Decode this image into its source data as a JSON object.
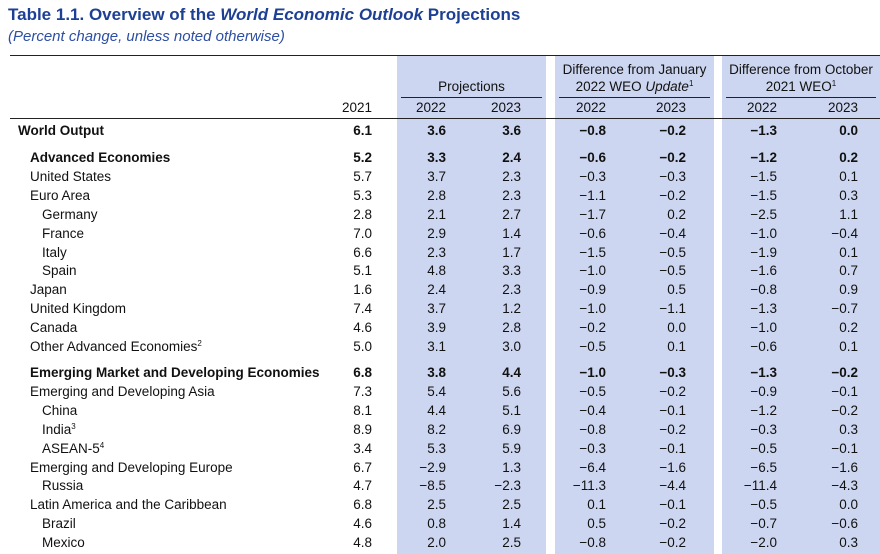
{
  "title": {
    "lead": "Table 1.1. Overview of the",
    "italic": "World Economic Outlook",
    "tail": "Projections"
  },
  "subtitle": "(Percent change, unless noted otherwise)",
  "header": {
    "years": [
      "2021",
      "2022",
      "2023",
      "2022",
      "2023",
      "2022",
      "2023"
    ],
    "projections": "Projections",
    "january": {
      "line1": "Difference from January",
      "line2": "2022 WEO",
      "italic": "Update",
      "note": "1"
    },
    "october": {
      "line1": "Difference from October",
      "line2": "2021 WEO",
      "note": "1"
    }
  },
  "table": {
    "world": {
      "label": "World Output",
      "values": [
        "6.1",
        "3.6",
        "3.6",
        "−0.8",
        "−0.2",
        "−1.3",
        "0.0"
      ]
    },
    "groups": [
      {
        "label": "Advanced Economies",
        "values": [
          "5.2",
          "3.3",
          "2.4",
          "−0.6",
          "−0.2",
          "−1.2",
          "0.2"
        ],
        "rows": [
          {
            "label": "United States",
            "values": [
              "5.7",
              "3.7",
              "2.3",
              "−0.3",
              "−0.3",
              "−1.5",
              "0.1"
            ]
          },
          {
            "label": "Euro Area",
            "values": [
              "5.3",
              "2.8",
              "2.3",
              "−1.1",
              "−0.2",
              "−1.5",
              "0.3"
            ],
            "rows": [
              {
                "label": "Germany",
                "values": [
                  "2.8",
                  "2.1",
                  "2.7",
                  "−1.7",
                  "0.2",
                  "−2.5",
                  "1.1"
                ]
              },
              {
                "label": "France",
                "values": [
                  "7.0",
                  "2.9",
                  "1.4",
                  "−0.6",
                  "−0.4",
                  "−1.0",
                  "−0.4"
                ]
              },
              {
                "label": "Italy",
                "values": [
                  "6.6",
                  "2.3",
                  "1.7",
                  "−1.5",
                  "−0.5",
                  "−1.9",
                  "0.1"
                ]
              },
              {
                "label": "Spain",
                "values": [
                  "5.1",
                  "4.8",
                  "3.3",
                  "−1.0",
                  "−0.5",
                  "−1.6",
                  "0.7"
                ]
              }
            ]
          },
          {
            "label": "Japan",
            "values": [
              "1.6",
              "2.4",
              "2.3",
              "−0.9",
              "0.5",
              "−0.8",
              "0.9"
            ]
          },
          {
            "label": "United Kingdom",
            "values": [
              "7.4",
              "3.7",
              "1.2",
              "−1.0",
              "−1.1",
              "−1.3",
              "−0.7"
            ]
          },
          {
            "label": "Canada",
            "values": [
              "4.6",
              "3.9",
              "2.8",
              "−0.2",
              "0.0",
              "−1.0",
              "0.2"
            ]
          },
          {
            "label": "Other Advanced Economies",
            "note": "2",
            "values": [
              "5.0",
              "3.1",
              "3.0",
              "−0.5",
              "0.1",
              "−0.6",
              "0.1"
            ]
          }
        ]
      },
      {
        "label": "Emerging Market and Developing Economies",
        "values": [
          "6.8",
          "3.8",
          "4.4",
          "−1.0",
          "−0.3",
          "−1.3",
          "−0.2"
        ],
        "rows": [
          {
            "label": "Emerging and Developing Asia",
            "values": [
              "7.3",
              "5.4",
              "5.6",
              "−0.5",
              "−0.2",
              "−0.9",
              "−0.1"
            ],
            "rows": [
              {
                "label": "China",
                "values": [
                  "8.1",
                  "4.4",
                  "5.1",
                  "−0.4",
                  "−0.1",
                  "−1.2",
                  "−0.2"
                ]
              },
              {
                "label": "India",
                "note": "3",
                "values": [
                  "8.9",
                  "8.2",
                  "6.9",
                  "−0.8",
                  "−0.2",
                  "−0.3",
                  "0.3"
                ]
              },
              {
                "label": "ASEAN-5",
                "note": "4",
                "values": [
                  "3.4",
                  "5.3",
                  "5.9",
                  "−0.3",
                  "−0.1",
                  "−0.5",
                  "−0.1"
                ]
              }
            ]
          },
          {
            "label": "Emerging and Developing Europe",
            "values": [
              "6.7",
              "−2.9",
              "1.3",
              "−6.4",
              "−1.6",
              "−6.5",
              "−1.6"
            ],
            "rows": [
              {
                "label": "Russia",
                "values": [
                  "4.7",
                  "−8.5",
                  "−2.3",
                  "−11.3",
                  "−4.4",
                  "−11.4",
                  "−4.3"
                ]
              }
            ]
          },
          {
            "label": "Latin America and the Caribbean",
            "values": [
              "6.8",
              "2.5",
              "2.5",
              "0.1",
              "−0.1",
              "−0.5",
              "0.0"
            ],
            "rows": [
              {
                "label": "Brazil",
                "values": [
                  "4.6",
                  "0.8",
                  "1.4",
                  "0.5",
                  "−0.2",
                  "−0.7",
                  "−0.6"
                ]
              },
              {
                "label": "Mexico",
                "values": [
                  "4.8",
                  "2.0",
                  "2.5",
                  "−0.8",
                  "−0.2",
                  "−2.0",
                  "0.3"
                ]
              }
            ]
          }
        ]
      }
    ]
  }
}
